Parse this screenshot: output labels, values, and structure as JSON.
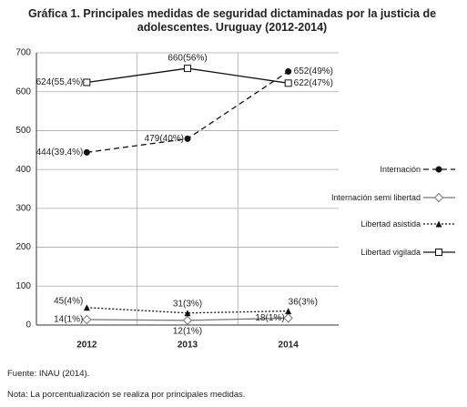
{
  "chart_data": {
    "type": "line",
    "title": "Gráfica 1. Principales medidas de seguridad dictaminadas por la justicia de adolescentes. Uruguay (2012-2014)",
    "categories": [
      "2012",
      "2013",
      "2014"
    ],
    "series": [
      {
        "name": "Internación",
        "color": "#111111",
        "line_style": "dashed",
        "marker": "circle",
        "values": [
          444,
          479,
          652
        ],
        "value_labels": [
          "444(39,4%)",
          "479(40%)",
          "652(49%)"
        ]
      },
      {
        "name": "Internación semi libertad",
        "color": "#777777",
        "line_style": "solid",
        "marker": "diamond",
        "values": [
          14,
          12,
          18
        ],
        "value_labels": [
          "14(1%)",
          "12(1%)",
          "18(1%)"
        ]
      },
      {
        "name": "Libertad asistida",
        "color": "#111111",
        "line_style": "dotted",
        "marker": "triangle",
        "values": [
          45,
          31,
          36
        ],
        "value_labels": [
          "45(4%)",
          "31(3%)",
          "36(3%)"
        ]
      },
      {
        "name": "Libertad vigilada",
        "color": "#111111",
        "line_style": "solid",
        "marker": "square",
        "values": [
          624,
          660,
          622
        ],
        "value_labels": [
          "624(55,4%)",
          "660(56%)",
          "622(47%)"
        ]
      }
    ],
    "ylim": [
      0,
      700
    ],
    "yticks": [
      0,
      100,
      200,
      300,
      400,
      500,
      600,
      700
    ],
    "grid": true,
    "source": "Fuente: INAU (2014).",
    "note": "Nota: La porcentualización se realiza por principales medidas."
  }
}
